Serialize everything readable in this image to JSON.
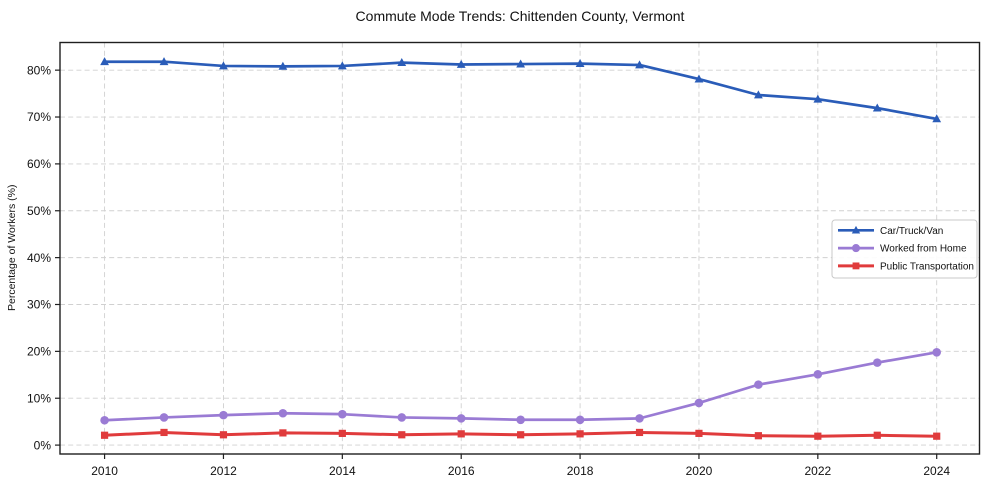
{
  "chart_data": {
    "type": "line",
    "title": "Commute Mode Trends: Chittenden County, Vermont",
    "xlabel": "",
    "ylabel": "Percentage of Workers (%)",
    "x": [
      2010,
      2011,
      2012,
      2013,
      2014,
      2015,
      2016,
      2017,
      2018,
      2019,
      2020,
      2021,
      2022,
      2023,
      2024
    ],
    "series": [
      {
        "name": "Car/Truck/Van",
        "color": "#2a5cb8",
        "marker": "triangle",
        "line_width": 2.7,
        "values": [
          81.8,
          81.8,
          80.9,
          80.8,
          80.9,
          81.6,
          81.2,
          81.3,
          81.4,
          81.1,
          78.1,
          74.7,
          73.8,
          71.9,
          69.6
        ]
      },
      {
        "name": "Worked from Home",
        "color": "#9a7bd4",
        "marker": "circle",
        "line_width": 2.7,
        "values": [
          5.3,
          5.9,
          6.4,
          6.8,
          6.6,
          5.9,
          5.7,
          5.4,
          5.4,
          5.7,
          9.0,
          12.9,
          15.1,
          17.6,
          19.8
        ]
      },
      {
        "name": "Public Transportation",
        "color": "#e03b3c",
        "marker": "square",
        "line_width": 3,
        "values": [
          2.1,
          2.7,
          2.2,
          2.6,
          2.5,
          2.2,
          2.4,
          2.2,
          2.4,
          2.7,
          2.5,
          2.0,
          1.9,
          2.1,
          1.9
        ]
      }
    ],
    "x_ticks": {
      "values": [
        2010,
        2012,
        2014,
        2016,
        2018,
        2020,
        2022,
        2024
      ],
      "labels": [
        "2010",
        "2012",
        "2014",
        "2016",
        "2018",
        "2020",
        "2022",
        "2024"
      ]
    },
    "y_ticks": {
      "values": [
        0,
        10,
        20,
        30,
        40,
        50,
        60,
        70,
        80
      ],
      "labels": [
        "0%",
        "10%",
        "20%",
        "30%",
        "40%",
        "50%",
        "60%",
        "70%",
        "80%"
      ]
    },
    "xlim": [
      2009.25,
      2024.72
    ],
    "ylim": [
      -1.9,
      85.9
    ],
    "grid": {
      "show": true,
      "line_style": "dashed",
      "color": "#d0d0d0"
    },
    "legend": {
      "position": "center-right",
      "border_color": "#c9c9c9",
      "background": "#ffffff"
    },
    "axis_color": "#1f1f1f",
    "text_color": "#111111"
  }
}
